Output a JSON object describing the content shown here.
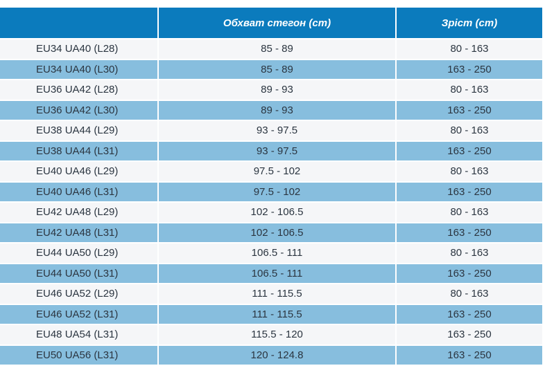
{
  "header": [
    "",
    "Обхват стегон (cm)",
    "Зріст (cm)"
  ],
  "rows": [
    [
      "EU34 UA40 (L28)",
      "85 - 89",
      "80 - 163"
    ],
    [
      "EU34 UA40 (L30)",
      "85 - 89",
      "163 - 250"
    ],
    [
      "EU36 UA42 (L28)",
      "89 - 93",
      "80 - 163"
    ],
    [
      "EU36 UA42 (L30)",
      "89 - 93",
      "163 - 250"
    ],
    [
      "EU38 UA44 (L29)",
      "93 - 97.5",
      "80 - 163"
    ],
    [
      "EU38 UA44 (L31)",
      "93 - 97.5",
      "163 - 250"
    ],
    [
      "EU40 UA46 (L29)",
      "97.5 - 102",
      "80 - 163"
    ],
    [
      "EU40 UA46 (L31)",
      "97.5 - 102",
      "163 - 250"
    ],
    [
      "EU42 UA48 (L29)",
      "102 - 106.5",
      "80 - 163"
    ],
    [
      "EU42 UA48 (L31)",
      "102 - 106.5",
      "163 - 250"
    ],
    [
      "EU44 UA50 (L29)",
      "106.5 - 111",
      "80 - 163"
    ],
    [
      "EU44 UA50 (L31)",
      "106.5 - 111",
      "163 - 250"
    ],
    [
      "EU46 UA52 (L29)",
      "111 - 115.5",
      "80 - 163"
    ],
    [
      "EU46 UA52 (L31)",
      "111 - 115.5",
      "163 - 250"
    ],
    [
      "EU48 UA54 (L31)",
      "115.5 - 120",
      "163 - 250"
    ],
    [
      "EU50 UA56 (L31)",
      "120 - 124.8",
      "163 - 250"
    ]
  ],
  "colors": {
    "header": "#0b7bbd",
    "row_alt": "#87bede",
    "row_light": "#f5f6f8"
  }
}
